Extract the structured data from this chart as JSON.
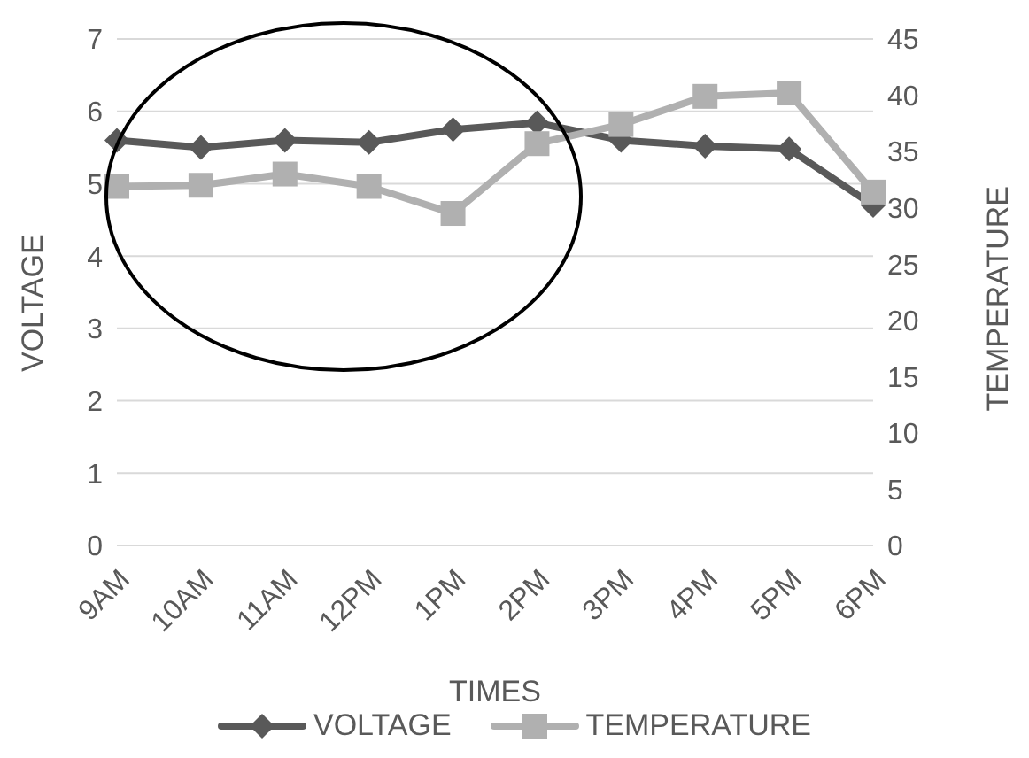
{
  "chart_data": {
    "type": "line",
    "xlabel": "TIMES",
    "ylabel": "VOLTAGE",
    "y2label": "TEMPERATURE",
    "categories": [
      "9AM",
      "10AM",
      "11AM",
      "12PM",
      "1PM",
      "2PM",
      "3PM",
      "4PM",
      "5PM",
      "6PM"
    ],
    "series": [
      {
        "name": "VOLTAGE",
        "color": "#595959",
        "marker": "diamond",
        "values": [
          5.6,
          5.5,
          5.6,
          5.57,
          5.75,
          5.84,
          5.6,
          5.52,
          5.48,
          4.7
        ]
      },
      {
        "name": "TEMPERATURE",
        "color": "#b0b0b0",
        "marker": "square",
        "axis": "y2",
        "values": [
          31.9,
          32,
          33,
          31.9,
          29.5,
          35.7,
          37.4,
          39.9,
          40.2,
          31.4
        ]
      }
    ],
    "ylim": [
      0,
      7
    ],
    "yticks": [
      0,
      1,
      2,
      3,
      4,
      5,
      6,
      7
    ],
    "y2lim": [
      0,
      45
    ],
    "y2ticks": [
      0,
      5,
      10,
      15,
      20,
      25,
      30,
      35,
      40,
      45
    ],
    "grid": "y",
    "legend": "bottom",
    "line_style": "solid"
  }
}
